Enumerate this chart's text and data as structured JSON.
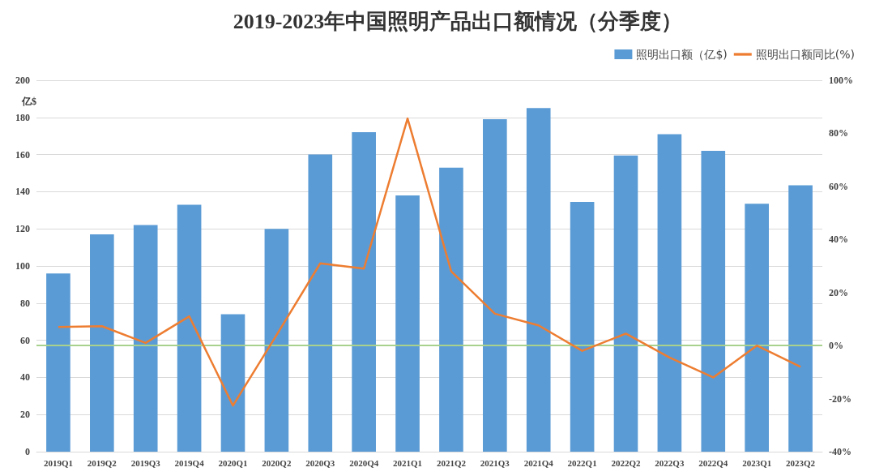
{
  "chart_data": {
    "type": "bar",
    "title": "2019-2023年中国照明产品出口额情况（分季度）",
    "ylabel": "亿$",
    "categories": [
      "2019Q1",
      "2019Q2",
      "2019Q3",
      "2019Q4",
      "2020Q1",
      "2020Q2",
      "2020Q3",
      "2020Q4",
      "2021Q1",
      "2021Q2",
      "2021Q3",
      "2021Q4",
      "2022Q1",
      "2022Q2",
      "2022Q3",
      "2022Q4",
      "2023Q1",
      "2023Q2"
    ],
    "series": [
      {
        "name": "照明出口额（亿$)",
        "color": "#5b9bd5",
        "values": [
          96,
          117,
          122,
          133,
          74,
          120,
          160,
          172,
          138,
          153,
          179,
          185,
          134.5,
          159.5,
          171,
          162,
          133.5,
          143.5
        ]
      },
      {
        "name": "照明出口额同比(%)",
        "type": "line",
        "axis": "y2",
        "color": "#ed7d31",
        "values": [
          7,
          7.3,
          1,
          11,
          -22.6,
          4,
          31,
          29,
          85.6,
          28,
          12,
          7.6,
          -2,
          4.5,
          -4.5,
          -12,
          0,
          -8
        ]
      }
    ],
    "ylim": [
      0,
      200
    ],
    "yticks": [
      0,
      20,
      40,
      60,
      80,
      100,
      120,
      140,
      160,
      180,
      200
    ],
    "y2lim": [
      -40,
      100
    ],
    "y2ticks": [
      {
        "value": -40,
        "label": "-40%"
      },
      {
        "value": -20,
        "label": "-20%"
      },
      {
        "value": 0,
        "label": "0%"
      },
      {
        "value": 20,
        "label": "20%"
      },
      {
        "value": 40,
        "label": "40%"
      },
      {
        "value": 60,
        "label": "60%"
      },
      {
        "value": 80,
        "label": "80%"
      },
      {
        "value": 100,
        "label": "100%"
      }
    ],
    "ref_lines": [
      {
        "axis": "y2",
        "value": 0,
        "color": "#a9d18e"
      }
    ],
    "grid": "y",
    "legend": "top right",
    "marker": "none"
  }
}
